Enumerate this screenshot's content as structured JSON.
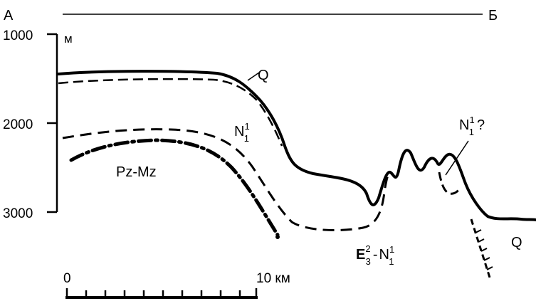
{
  "profile": {
    "start_label": "А",
    "end_label": "Б",
    "unit_label": "м"
  },
  "depth_axis": {
    "ticks": [
      "1000",
      "2000",
      "3000"
    ]
  },
  "layers": {
    "q_top": {
      "letter": "Q"
    },
    "q_right": {
      "letter": "Q"
    },
    "n1": {
      "base": "N",
      "sup": "1",
      "sub": "1"
    },
    "n1_q": {
      "base": "N",
      "sup": "1",
      "sub": "1",
      "suffix": "?"
    },
    "pz_mz": {
      "text": "Pz-Mz"
    },
    "e_n": {
      "e_base": "E",
      "e_sup": "2",
      "e_sub": "3",
      "dash": "-",
      "n_base": "N",
      "n_sup": "1",
      "n_sub": "1"
    }
  },
  "scale": {
    "zero": "0",
    "ten": "10 км"
  }
}
